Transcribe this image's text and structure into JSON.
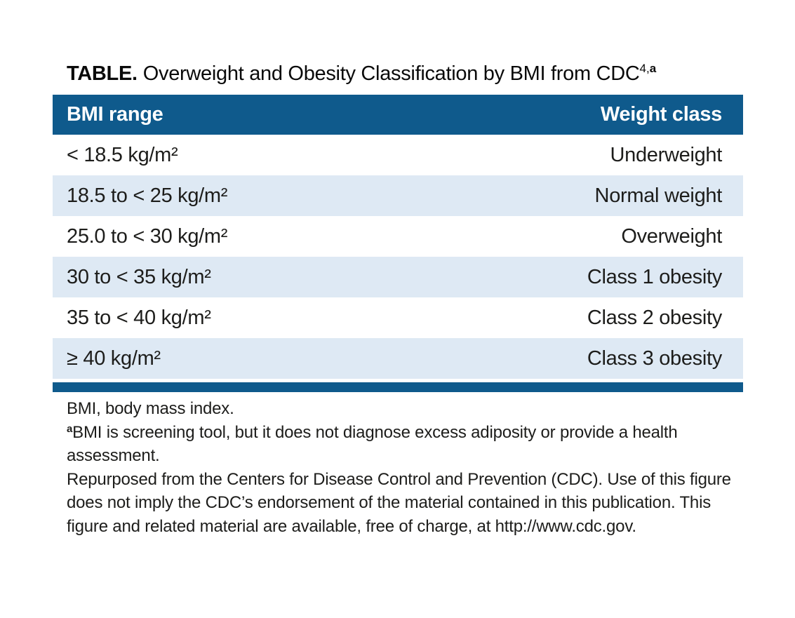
{
  "title": {
    "label": "TABLE.",
    "text": "Overweight and Obesity Classification by BMI from CDC",
    "superscript_citation": "4,",
    "superscript_note": "a"
  },
  "table": {
    "columns": [
      "BMI range",
      "Weight class"
    ],
    "rows": [
      {
        "bmi_range": "< 18.5 kg/m²",
        "weight_class": "Underweight"
      },
      {
        "bmi_range": "18.5 to < 25 kg/m²",
        "weight_class": "Normal weight"
      },
      {
        "bmi_range": "25.0 to < 30 kg/m²",
        "weight_class": "Overweight"
      },
      {
        "bmi_range": "30 to < 35 kg/m²",
        "weight_class": "Class 1 obesity"
      },
      {
        "bmi_range": "35 to < 40 kg/m²",
        "weight_class": "Class 2 obesity"
      },
      {
        "bmi_range": "≥ 40 kg/m²",
        "weight_class": "Class 3 obesity"
      }
    ]
  },
  "footnotes": {
    "abbreviation": "BMI, body mass index.",
    "note_a_marker": "a",
    "note_a": "BMI is screening tool, but it does not diagnose excess adiposity or provide a health assessment.",
    "attribution": "Repurposed from the Centers for Disease Control and Prevention (CDC). Use of this figure does not imply the CDC’s endorsement of the material contained in this publication. This figure and related material are available, free of charge, at http://www.cdc.gov."
  },
  "colors": {
    "header_bg": "#0f5a8c",
    "row_alt_bg": "#dee9f4",
    "header_text": "#ffffff",
    "body_text": "#1d1d1b"
  }
}
